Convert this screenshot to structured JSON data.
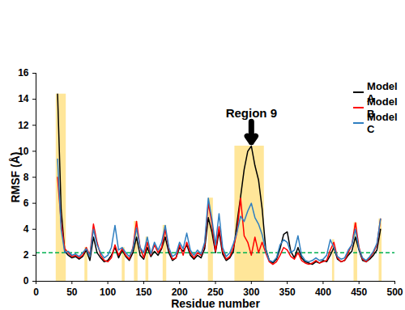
{
  "chart_data": {
    "type": "line",
    "x_label": "Residue number",
    "y_label": "RMSF (Å)",
    "xlim": [
      0,
      500
    ],
    "xticks": [
      0,
      50,
      100,
      150,
      200,
      250,
      300,
      350,
      400,
      450,
      500
    ],
    "ylim": [
      0,
      16
    ],
    "yticks": [
      0,
      2,
      4,
      6,
      8,
      10,
      12,
      14,
      16
    ],
    "legend": "top-right",
    "x": [
      30,
      35,
      40,
      45,
      50,
      55,
      60,
      65,
      70,
      75,
      80,
      85,
      90,
      95,
      100,
      105,
      110,
      115,
      120,
      125,
      130,
      135,
      140,
      145,
      150,
      155,
      160,
      165,
      170,
      175,
      180,
      185,
      190,
      195,
      200,
      205,
      210,
      215,
      220,
      225,
      230,
      235,
      240,
      245,
      250,
      255,
      260,
      265,
      270,
      275,
      280,
      285,
      290,
      295,
      300,
      305,
      310,
      315,
      320,
      325,
      330,
      335,
      340,
      345,
      350,
      355,
      360,
      365,
      370,
      375,
      380,
      385,
      390,
      395,
      400,
      405,
      410,
      415,
      420,
      425,
      430,
      435,
      440,
      445,
      450,
      455,
      460,
      465,
      470,
      475,
      480
    ],
    "series": [
      {
        "name": "Model A",
        "color": "#000000",
        "values": [
          14.4,
          5.5,
          2.3,
          2.0,
          1.8,
          1.9,
          1.7,
          1.9,
          2.4,
          1.6,
          3.4,
          2.2,
          1.8,
          1.5,
          1.6,
          2.0,
          2.6,
          1.8,
          2.4,
          1.9,
          1.6,
          2.2,
          3.4,
          2.0,
          1.7,
          2.6,
          1.9,
          2.3,
          2.0,
          2.5,
          3.4,
          2.2,
          1.6,
          1.8,
          2.6,
          2.3,
          2.8,
          2.0,
          1.7,
          2.0,
          1.8,
          2.5,
          4.9,
          3.8,
          2.2,
          3.8,
          2.1,
          1.6,
          1.8,
          2.3,
          4.5,
          6.5,
          8.6,
          10.0,
          10.4,
          8.9,
          7.8,
          5.6,
          2.5,
          1.6,
          1.4,
          1.7,
          2.5,
          3.6,
          3.8,
          2.3,
          1.8,
          2.6,
          1.8,
          1.5,
          1.4,
          1.3,
          1.5,
          1.4,
          1.6,
          1.5,
          2.0,
          2.6,
          1.7,
          1.5,
          1.6,
          2.0,
          2.3,
          3.4,
          2.4,
          1.6,
          1.5,
          1.7,
          2.0,
          2.4,
          4.0
        ]
      },
      {
        "name": "Model B",
        "color": "#ff0000",
        "values": [
          8.0,
          4.5,
          2.5,
          2.2,
          1.9,
          2.0,
          1.8,
          2.0,
          2.6,
          2.0,
          4.4,
          3.0,
          2.0,
          1.6,
          1.5,
          1.8,
          2.8,
          2.0,
          2.5,
          2.0,
          1.7,
          2.6,
          4.6,
          2.6,
          1.8,
          3.0,
          2.0,
          2.8,
          2.2,
          2.6,
          4.0,
          2.5,
          1.7,
          1.8,
          2.8,
          2.0,
          3.0,
          2.2,
          1.8,
          2.2,
          2.0,
          2.8,
          6.0,
          4.5,
          2.3,
          4.2,
          2.3,
          1.7,
          1.9,
          2.6,
          3.8,
          6.4,
          3.5,
          3.0,
          2.0,
          3.4,
          2.2,
          3.0,
          2.2,
          1.5,
          1.3,
          1.5,
          2.0,
          2.6,
          2.4,
          1.9,
          1.7,
          2.2,
          1.6,
          1.4,
          1.3,
          1.4,
          1.6,
          1.4,
          1.5,
          1.6,
          2.4,
          3.0,
          1.8,
          1.5,
          1.6,
          2.2,
          2.8,
          4.5,
          2.6,
          1.7,
          1.5,
          1.8,
          2.2,
          2.8,
          4.8
        ]
      },
      {
        "name": "Model C",
        "color": "#2f7fc1",
        "values": [
          9.4,
          4.0,
          2.2,
          2.3,
          2.0,
          2.1,
          1.9,
          2.2,
          2.5,
          1.9,
          4.0,
          2.8,
          2.2,
          1.8,
          2.0,
          2.6,
          4.3,
          2.4,
          2.6,
          2.2,
          1.9,
          2.5,
          4.1,
          2.6,
          2.2,
          3.4,
          2.1,
          3.0,
          2.4,
          3.0,
          4.3,
          2.6,
          1.9,
          2.1,
          3.0,
          2.5,
          3.7,
          2.4,
          2.0,
          2.4,
          2.1,
          3.0,
          6.4,
          4.8,
          2.8,
          5.2,
          2.6,
          1.9,
          2.2,
          2.9,
          3.8,
          5.0,
          4.6,
          5.4,
          6.0,
          4.9,
          4.4,
          3.6,
          2.4,
          1.6,
          1.5,
          1.8,
          2.8,
          3.2,
          3.0,
          2.2,
          2.4,
          3.5,
          2.0,
          1.6,
          1.5,
          1.6,
          1.8,
          1.6,
          1.7,
          2.0,
          3.2,
          2.6,
          1.9,
          1.7,
          1.8,
          2.4,
          2.8,
          4.0,
          2.5,
          1.8,
          1.6,
          1.9,
          2.3,
          2.9,
          4.8
        ]
      }
    ],
    "reference_line": {
      "value": 2.2,
      "color": "#00b050",
      "line_style": "dashed"
    },
    "highlighted_regions": {
      "color": "#ffe699",
      "ranges": [
        [
          28,
          42
        ],
        [
          68,
          72
        ],
        [
          120,
          124
        ],
        [
          137,
          142
        ],
        [
          153,
          157
        ],
        [
          177,
          182
        ],
        [
          240,
          247
        ],
        [
          277,
          318
        ],
        [
          413,
          416
        ],
        [
          443,
          448
        ],
        [
          478,
          482
        ]
      ]
    },
    "annotations": [
      {
        "text": "Region 9",
        "x": 300,
        "y": 12.4,
        "arrow_to": 10.7
      }
    ]
  }
}
